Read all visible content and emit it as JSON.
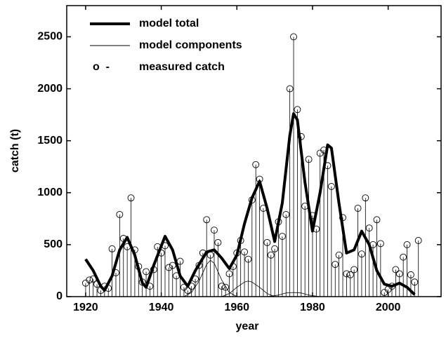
{
  "chart_data": {
    "type": "line",
    "xlabel": "year",
    "ylabel": "catch (t)",
    "xlim": [
      1915,
      2014
    ],
    "ylim": [
      0,
      2800
    ],
    "xticks": [
      1920,
      1940,
      1960,
      1980,
      2000
    ],
    "yticks": [
      0,
      500,
      1000,
      1500,
      2000,
      2500
    ],
    "grid": false,
    "legend": "upper left",
    "series": [
      {
        "name": "model total",
        "color": "#000000",
        "style": "thick-line",
        "x": [
          1920,
          1922,
          1924,
          1925,
          1927,
          1929,
          1931,
          1933,
          1935,
          1936,
          1938,
          1941,
          1943,
          1945,
          1947,
          1949,
          1952,
          1954,
          1956,
          1958,
          1960,
          1962,
          1964,
          1966,
          1968,
          1970,
          1972,
          1974,
          1975,
          1976,
          1978,
          1980,
          1982,
          1984,
          1985,
          1987,
          1989,
          1991,
          1993,
          1995,
          1997,
          1999,
          2001,
          2003,
          2005,
          2007
        ],
        "values": [
          360,
          250,
          100,
          60,
          200,
          450,
          570,
          400,
          130,
          90,
          300,
          580,
          450,
          200,
          100,
          250,
          430,
          450,
          370,
          270,
          400,
          700,
          950,
          1110,
          850,
          530,
          900,
          1550,
          1760,
          1700,
          1100,
          630,
          1000,
          1460,
          1430,
          900,
          420,
          450,
          630,
          500,
          250,
          120,
          100,
          130,
          90,
          20
        ]
      },
      {
        "name": "model components",
        "color": "#000000",
        "style": "thin-lines",
        "components": [
          {
            "x": [
              1946,
              1948,
              1950,
              1952,
              1953,
              1954,
              1956,
              1958,
              1960
            ],
            "values": [
              0,
              40,
              150,
              310,
              350,
              320,
              160,
              40,
              0
            ]
          },
          {
            "x": [
              1956,
              1958,
              1960,
              1962,
              1963,
              1964,
              1966,
              1968,
              1970
            ],
            "values": [
              0,
              30,
              90,
              140,
              150,
              140,
              90,
              30,
              0
            ]
          },
          {
            "x": [
              1968,
              1971,
              1973,
              1975,
              1977,
              1979,
              1982
            ],
            "values": [
              0,
              15,
              35,
              40,
              35,
              15,
              0
            ]
          }
        ]
      },
      {
        "name": "measured catch",
        "legend_symbol": "o  -",
        "color": "#000000",
        "style": "stem",
        "x": [
          1920,
          1921,
          1922,
          1923,
          1924,
          1925,
          1926,
          1927,
          1928,
          1929,
          1930,
          1931,
          1932,
          1933,
          1934,
          1935,
          1936,
          1937,
          1938,
          1939,
          1940,
          1941,
          1942,
          1943,
          1944,
          1945,
          1946,
          1947,
          1948,
          1949,
          1950,
          1951,
          1952,
          1953,
          1954,
          1955,
          1956,
          1957,
          1958,
          1959,
          1960,
          1961,
          1962,
          1963,
          1964,
          1965,
          1966,
          1967,
          1968,
          1969,
          1970,
          1971,
          1972,
          1973,
          1974,
          1975,
          1976,
          1977,
          1978,
          1979,
          1980,
          1981,
          1982,
          1983,
          1984,
          1985,
          1986,
          1987,
          1988,
          1989,
          1990,
          1991,
          1992,
          1993,
          1994,
          1995,
          1996,
          1997,
          1998,
          1999,
          2000,
          2001,
          2002,
          2003,
          2004,
          2005,
          2006,
          2007,
          2008
        ],
        "values": [
          130,
          160,
          170,
          120,
          60,
          100,
          80,
          460,
          230,
          790,
          560,
          480,
          950,
          450,
          290,
          140,
          240,
          100,
          260,
          480,
          420,
          490,
          280,
          300,
          200,
          340,
          90,
          60,
          100,
          170,
          300,
          420,
          740,
          400,
          640,
          520,
          100,
          90,
          220,
          290,
          420,
          540,
          430,
          360,
          930,
          1270,
          1130,
          850,
          520,
          400,
          460,
          720,
          580,
          790,
          2000,
          2500,
          1800,
          1540,
          870,
          1320,
          780,
          650,
          1380,
          1410,
          1260,
          1060,
          310,
          400,
          760,
          220,
          210,
          260,
          850,
          410,
          950,
          660,
          500,
          740,
          510,
          40,
          70,
          100,
          260,
          220,
          380,
          500,
          210,
          140,
          540
        ]
      }
    ]
  }
}
